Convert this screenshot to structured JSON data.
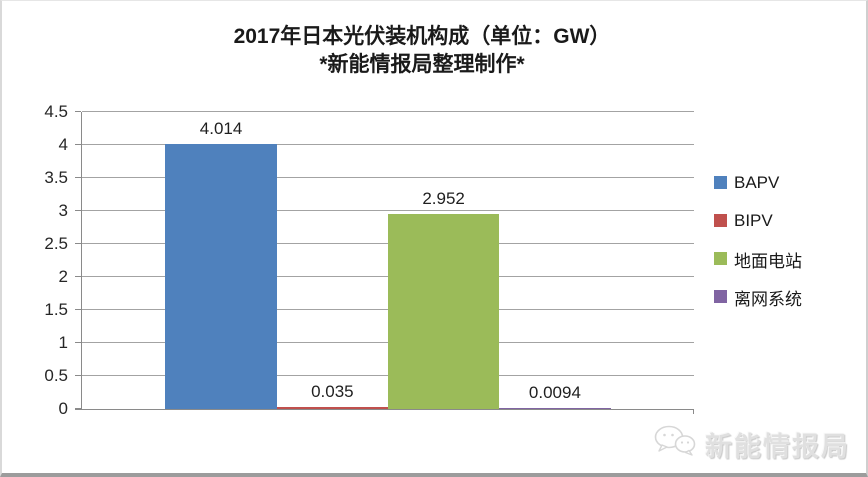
{
  "title": {
    "line1": "2017年日本光伏装机构成（单位：GW）",
    "line2": "*新能情报局整理制作*"
  },
  "chart_data": {
    "type": "bar",
    "title": "2017年日本光伏装机构成（单位：GW）",
    "subtitle": "*新能情报局整理制作*",
    "unit": "GW",
    "categories": [
      "BAPV",
      "BIPV",
      "地面电站",
      "离网系统"
    ],
    "values": [
      4.014,
      0.035,
      2.952,
      0.0094
    ],
    "data_labels": [
      "4.014",
      "0.035",
      "2.952",
      "0.0094"
    ],
    "series_colors": [
      "#4f81bd",
      "#c0504d",
      "#9bbb59",
      "#8064a2"
    ],
    "ylim": [
      0,
      4.5
    ],
    "ytick_step": 0.5,
    "yticks": [
      "0",
      "0.5",
      "1",
      "1.5",
      "2",
      "2.5",
      "3",
      "3.5",
      "4",
      "4.5"
    ],
    "grid": true,
    "legend_position": "right"
  },
  "legend": {
    "items": [
      {
        "label": "BAPV",
        "color": "#4f81bd"
      },
      {
        "label": "BIPV",
        "color": "#c0504d"
      },
      {
        "label": "地面电站",
        "color": "#9bbb59"
      },
      {
        "label": "离网系统",
        "color": "#8064a2"
      }
    ]
  },
  "watermark": {
    "text": "新能情报局",
    "icon": "wechat-chat-bubbles-icon"
  }
}
